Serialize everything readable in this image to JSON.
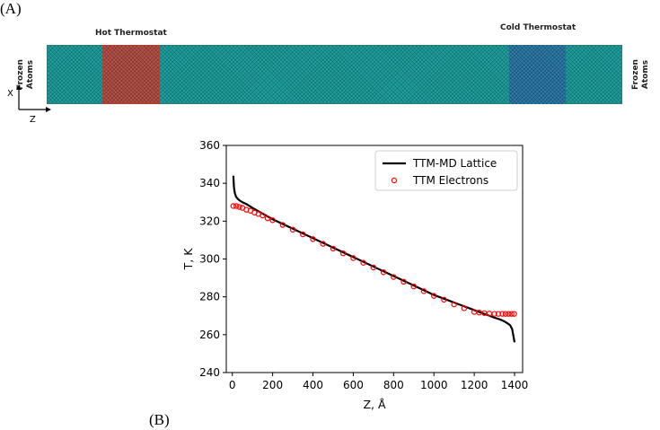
{
  "panels": {
    "a_label": "(A)",
    "b_label": "(B)"
  },
  "schematic": {
    "hot_label": "Hot Thermostat",
    "cold_label": "Cold Thermostat",
    "frozen_left_line1": "Frozen",
    "frozen_left_line2": "Atoms",
    "frozen_right_line1": "Frozen",
    "frozen_right_line2": "Atoms",
    "axis_x_label": "X",
    "axis_z_label": "Z",
    "colors": {
      "lattice": "#1fa2a0",
      "hot": "#b2564b",
      "cold": "#2f7fa6"
    }
  },
  "chart_data": {
    "type": "line",
    "title": "",
    "xlabel": "Z, Å",
    "ylabel": "T, K",
    "xlim": [
      -30,
      1440
    ],
    "ylim": [
      240,
      360
    ],
    "xticks": [
      0,
      200,
      400,
      600,
      800,
      1000,
      1200,
      1400
    ],
    "yticks": [
      240,
      260,
      280,
      300,
      320,
      340,
      360
    ],
    "legend_position": "top-right",
    "series": [
      {
        "name": "TTM-MD Lattice",
        "style": "line",
        "color": "#000000",
        "x": [
          5,
          8,
          12,
          18,
          25,
          35,
          50,
          70,
          100,
          150,
          200,
          300,
          400,
          500,
          600,
          700,
          800,
          900,
          1000,
          1100,
          1200,
          1250,
          1300,
          1330,
          1350,
          1365,
          1378,
          1388,
          1395,
          1400
        ],
        "y": [
          344,
          338,
          335,
          333,
          332,
          331,
          330,
          329,
          327,
          324,
          321,
          316,
          311,
          306,
          301,
          296,
          291,
          286,
          281,
          277,
          273,
          271,
          269,
          268,
          267,
          266,
          265,
          263,
          259,
          256
        ]
      },
      {
        "name": "TTM Electrons",
        "style": "scatter",
        "color": "#ff0000",
        "x": [
          5,
          20,
          35,
          50,
          70,
          90,
          110,
          130,
          150,
          175,
          200,
          250,
          300,
          350,
          400,
          450,
          500,
          550,
          600,
          650,
          700,
          750,
          800,
          850,
          900,
          950,
          1000,
          1050,
          1100,
          1150,
          1200,
          1225,
          1250,
          1275,
          1300,
          1320,
          1340,
          1355,
          1370,
          1385,
          1398
        ],
        "y": [
          328,
          328,
          327.5,
          327,
          326,
          325.5,
          324.5,
          323.8,
          323,
          321.5,
          320.5,
          318,
          315.5,
          313,
          310.5,
          308,
          305.5,
          303,
          300.5,
          298,
          295.5,
          293,
          290.5,
          288,
          285.5,
          283,
          280.5,
          278.5,
          276,
          274,
          272,
          271.7,
          271.4,
          271.2,
          271,
          271,
          271,
          271,
          271,
          271,
          271
        ]
      }
    ]
  }
}
